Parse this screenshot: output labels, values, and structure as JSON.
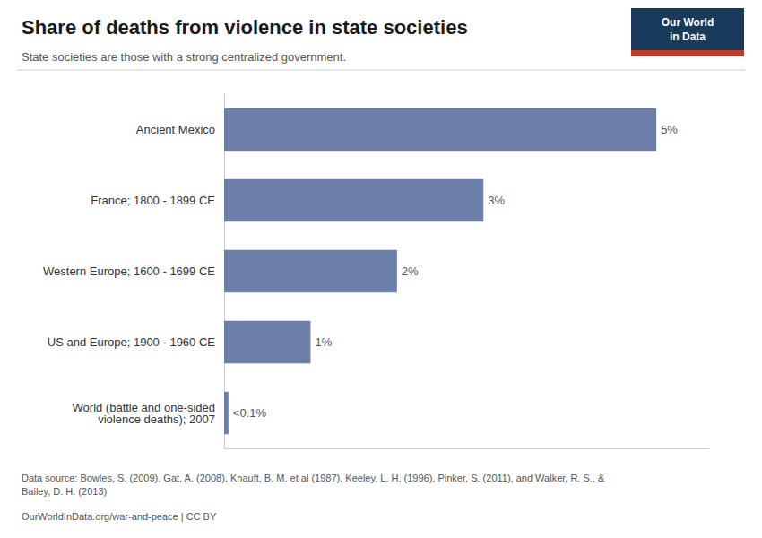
{
  "chart_data": {
    "type": "bar",
    "orientation": "horizontal",
    "title": "Share of deaths from violence in state societies",
    "subtitle": "State societies are those with a strong centralized government.",
    "categories": [
      "Ancient Mexico",
      "France; 1800 - 1899 CE",
      "Western Europe; 1600 - 1699 CE",
      "US and Europe; 1900 - 1960 CE",
      "World (battle and one-sided\nviolence deaths); 2007"
    ],
    "values": [
      5,
      3,
      2,
      1,
      0.05
    ],
    "value_labels": [
      "5%",
      "3%",
      "2%",
      "1%",
      "<0.1%"
    ],
    "data_labels": true,
    "color": "#6b7faa",
    "xlim": [
      0,
      5.6
    ],
    "tick_labels": "y",
    "grid": false,
    "source": "Data source: Bowles, S. (2009), Gat, A. (2008), Knauft, B. M. et al (1987), Keeley, L. H. (1996), Pinker, S. (2011), and Walker, R. S., &\nBailey, D. H. (2013)",
    "footer": "OurWorldInData.org/war-and-peace | CC BY",
    "annotations": [
      "Our World\nin Data"
    ]
  }
}
